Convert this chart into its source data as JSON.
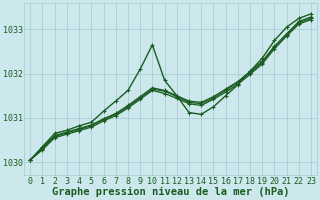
{
  "background_color": "#cce8ed",
  "grid_color": "#aacdd4",
  "line_color": "#1a5c20",
  "xlabel": "Graphe pression niveau de la mer (hPa)",
  "xlabel_fontsize": 7.5,
  "tick_fontsize": 6,
  "xlim": [
    -0.5,
    23.5
  ],
  "ylim": [
    1029.7,
    1033.6
  ],
  "yticks": [
    1030,
    1031,
    1032,
    1033
  ],
  "xticks": [
    0,
    1,
    2,
    3,
    4,
    5,
    6,
    7,
    8,
    9,
    10,
    11,
    12,
    13,
    14,
    15,
    16,
    17,
    18,
    19,
    20,
    21,
    22,
    23
  ],
  "series": [
    {
      "x": [
        0,
        1,
        2,
        3,
        4,
        5,
        6,
        7,
        8,
        9,
        10,
        11,
        12,
        13,
        14,
        15,
        16,
        17,
        18,
        19,
        20,
        21,
        22,
        23
      ],
      "y": [
        1030.05,
        1030.35,
        1030.65,
        1030.72,
        1030.82,
        1030.9,
        1031.15,
        1031.38,
        1031.62,
        1032.1,
        1032.65,
        1031.85,
        1031.5,
        1031.12,
        1031.08,
        1031.25,
        1031.5,
        1031.75,
        1032.05,
        1032.35,
        1032.75,
        1033.05,
        1033.25,
        1033.35
      ],
      "lw": 1.0
    },
    {
      "x": [
        0,
        1,
        2,
        3,
        4,
        5,
        6,
        7,
        8,
        9,
        10,
        11,
        12,
        13,
        14,
        15,
        16,
        17,
        18,
        19,
        20,
        21,
        22,
        23
      ],
      "y": [
        1030.05,
        1030.32,
        1030.6,
        1030.68,
        1030.76,
        1030.84,
        1030.98,
        1031.1,
        1031.28,
        1031.48,
        1031.68,
        1031.62,
        1031.5,
        1031.38,
        1031.35,
        1031.48,
        1031.65,
        1031.82,
        1032.05,
        1032.28,
        1032.62,
        1032.9,
        1033.18,
        1033.28
      ],
      "lw": 0.9
    },
    {
      "x": [
        0,
        1,
        2,
        3,
        4,
        5,
        6,
        7,
        8,
        9,
        10,
        11,
        12,
        13,
        14,
        15,
        16,
        17,
        18,
        19,
        20,
        21,
        22,
        23
      ],
      "y": [
        1030.05,
        1030.3,
        1030.58,
        1030.66,
        1030.74,
        1030.82,
        1030.96,
        1031.08,
        1031.25,
        1031.45,
        1031.65,
        1031.6,
        1031.48,
        1031.35,
        1031.32,
        1031.45,
        1031.62,
        1031.8,
        1032.02,
        1032.25,
        1032.6,
        1032.88,
        1033.15,
        1033.25
      ],
      "lw": 0.9
    },
    {
      "x": [
        0,
        1,
        2,
        3,
        4,
        5,
        6,
        7,
        8,
        9,
        10,
        11,
        12,
        13,
        14,
        15,
        16,
        17,
        18,
        19,
        20,
        21,
        22,
        23
      ],
      "y": [
        1030.05,
        1030.28,
        1030.55,
        1030.63,
        1030.71,
        1030.79,
        1030.93,
        1031.05,
        1031.22,
        1031.42,
        1031.62,
        1031.55,
        1031.44,
        1031.32,
        1031.28,
        1031.42,
        1031.58,
        1031.76,
        1031.98,
        1032.22,
        1032.56,
        1032.85,
        1033.12,
        1033.22
      ],
      "lw": 0.9
    }
  ]
}
